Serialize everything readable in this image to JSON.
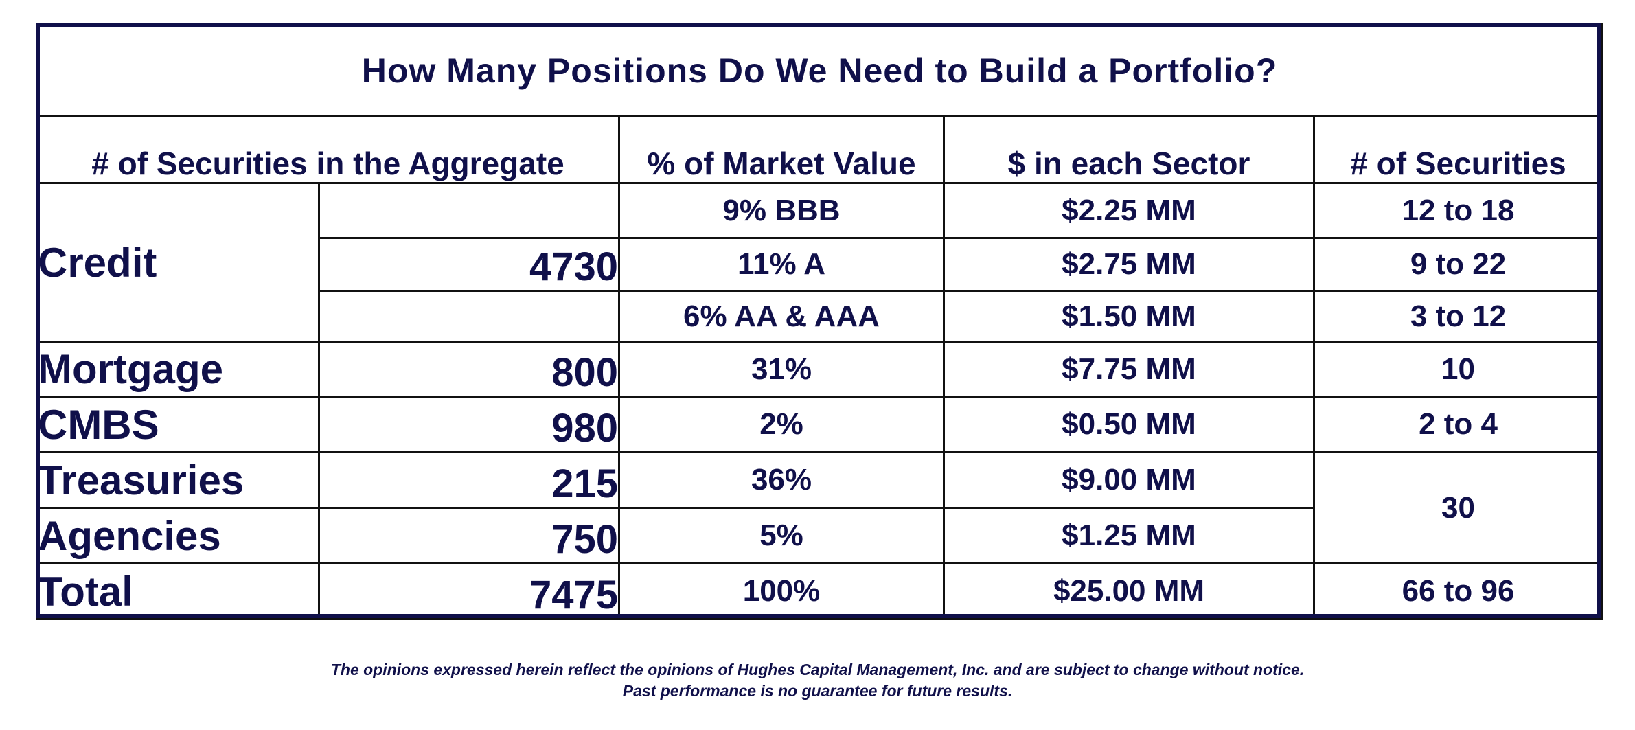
{
  "title": "How Many Positions Do We Need to Build a Portfolio?",
  "headers": {
    "aggregate": "# of Securities in the Aggregate",
    "market_value": "% of Market Value",
    "dollars": "$ in each Sector",
    "securities": "# of Securities"
  },
  "credit": {
    "label": "Credit",
    "aggregate": "4730",
    "sub": [
      {
        "market_value": "9% BBB",
        "dollars": "$2.25 MM",
        "securities": "12 to 18"
      },
      {
        "market_value": "11% A",
        "dollars": "$2.75 MM",
        "securities": "9 to 22"
      },
      {
        "market_value": "6% AA & AAA",
        "dollars": "$1.50 MM",
        "securities": "3 to 12"
      }
    ]
  },
  "mortgage": {
    "label": "Mortgage",
    "aggregate": "800",
    "market_value": "31%",
    "dollars": "$7.75 MM",
    "securities": "10"
  },
  "cmbs": {
    "label": "CMBS",
    "aggregate": "980",
    "market_value": "2%",
    "dollars": "$0.50 MM",
    "securities": "2 to 4"
  },
  "treasuries": {
    "label": "Treasuries",
    "aggregate": "215",
    "market_value": "36%",
    "dollars": "$9.00 MM"
  },
  "agencies": {
    "label": "Agencies",
    "aggregate": "750",
    "market_value": "5%",
    "dollars": "$1.25 MM"
  },
  "treasuries_agencies_securities": "30",
  "total": {
    "label": "Total",
    "aggregate": "7475",
    "market_value": "100%",
    "dollars": "$25.00 MM",
    "securities": "66 to 96"
  },
  "footer": {
    "line1": "The opinions expressed herein reflect the opinions of Hughes Capital Management, Inc. and are subject to change without notice.",
    "line2": "Past performance is no guarantee for future results."
  }
}
